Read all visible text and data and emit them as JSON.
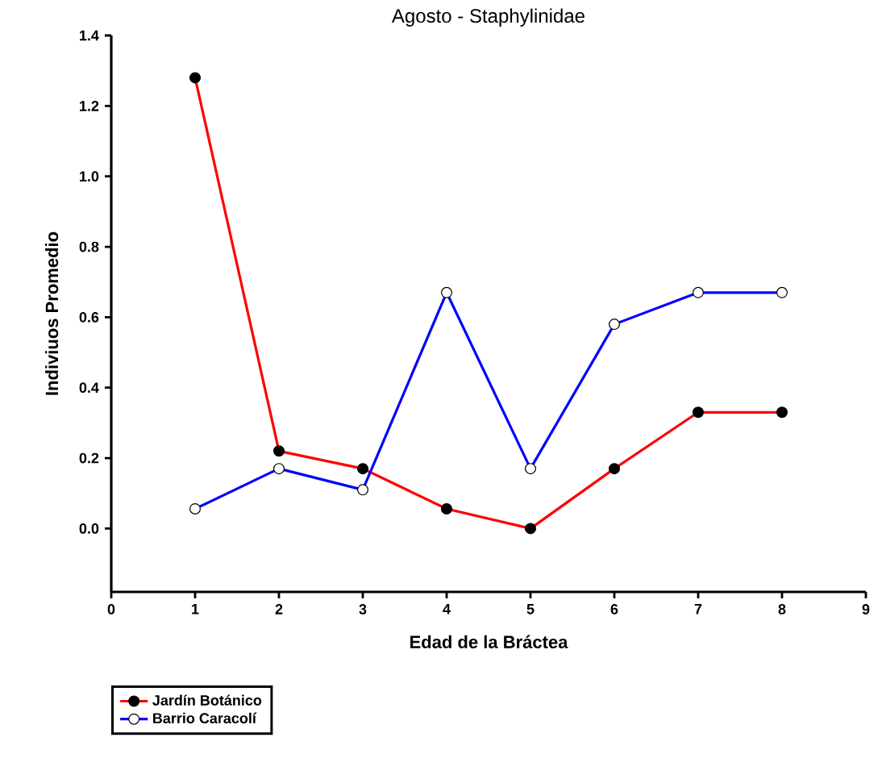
{
  "chart_data": {
    "type": "line",
    "title": "Agosto - Staphylinidae",
    "xlabel": "Edad de la Bráctea",
    "ylabel": "Indiviuos Promedio",
    "x": [
      1,
      2,
      3,
      4,
      5,
      6,
      7,
      8
    ],
    "series": [
      {
        "name": "Jardín Botánico",
        "color": "#ff0000",
        "values": [
          1.28,
          0.22,
          0.17,
          0.056,
          0.0,
          0.17,
          0.33,
          0.33
        ]
      },
      {
        "name": "Barrio Caracolí",
        "color": "#0000ff",
        "values": [
          0.056,
          0.17,
          0.11,
          0.67,
          0.17,
          0.58,
          0.67,
          0.67
        ]
      }
    ],
    "xlim": [
      0,
      9
    ],
    "xticks": [
      0,
      1,
      2,
      3,
      4,
      5,
      6,
      7,
      8,
      9
    ],
    "ylim": [
      -0.18,
      1.4
    ],
    "yticks": [
      {
        "value": 0.0,
        "label": "0.0"
      },
      {
        "value": 0.2,
        "label": "0.2"
      },
      {
        "value": 0.4,
        "label": "0.4"
      },
      {
        "value": 0.6,
        "label": "0.6"
      },
      {
        "value": 0.8,
        "label": "0.8"
      },
      {
        "value": 1.0,
        "label": "1.0"
      },
      {
        "value": 1.2,
        "label": "1.2"
      },
      {
        "value": 1.4,
        "label": "1.4"
      }
    ],
    "marker": "circle",
    "line_style": "solid",
    "legend": "bottom left",
    "grid": false
  }
}
